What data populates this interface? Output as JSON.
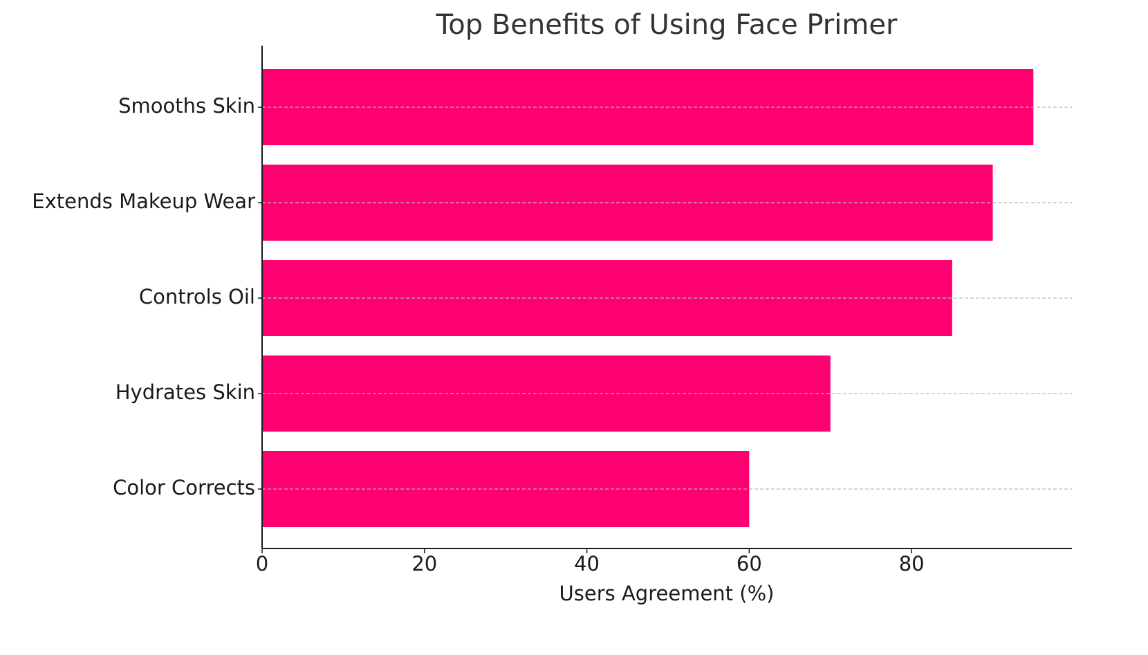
{
  "chart_data": {
    "type": "barh",
    "title": "Top Benefits of Using Face Primer",
    "xlabel": "Users Agreement (%)",
    "categories": [
      "Smooths Skin",
      "Extends Makeup Wear",
      "Controls Oil",
      "Hydrates Skin",
      "Color Corrects"
    ],
    "values": [
      95,
      90,
      85,
      70,
      60
    ],
    "color": "#ff0070",
    "xlim": [
      0,
      99.75
    ],
    "xticks": [
      0,
      20,
      40,
      60,
      80
    ],
    "grid": true
  }
}
